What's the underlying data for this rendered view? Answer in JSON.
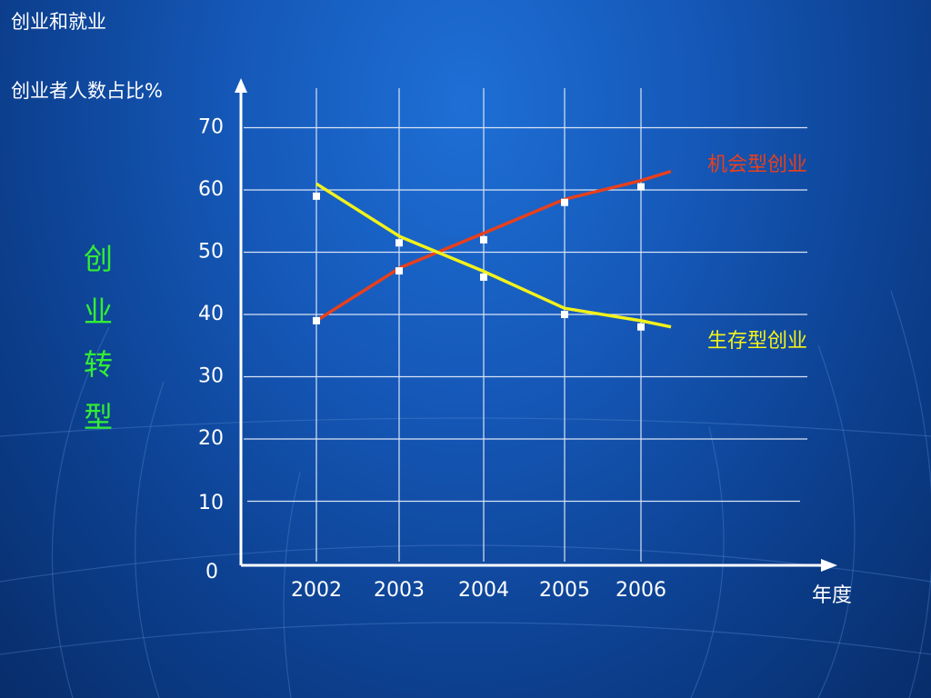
{
  "slide": {
    "title": "创业和就业",
    "side_title": "创业转型"
  },
  "colors": {
    "opportunity": "#e8401c",
    "survival": "#f2f21a",
    "axis": "#ffffff",
    "grid": "#d9e4f5",
    "side_title": "#33ee33"
  },
  "chart_data": {
    "type": "line",
    "ylabel": "创业者人数占比%",
    "xlabel": "年度",
    "categories": [
      "2002",
      "2003",
      "2004",
      "2005",
      "2006"
    ],
    "yticks": [
      "0",
      "10",
      "20",
      "30",
      "40",
      "50",
      "60",
      "70"
    ],
    "ylim": [
      0,
      70
    ],
    "grid": true,
    "series": [
      {
        "name": "机会型创业",
        "color_key": "opportunity",
        "line": [
          {
            "x": "2002",
            "y": 39
          },
          {
            "x": "2003",
            "y": 47.5
          },
          {
            "x": "2004",
            "y": 53
          },
          {
            "x": "2005",
            "y": 58.5
          },
          {
            "x": "2006",
            "y": 61.5
          },
          {
            "x": "2006+",
            "y": 63
          }
        ],
        "points": [
          39,
          47,
          52,
          58,
          60.5
        ]
      },
      {
        "name": "生存型创业",
        "color_key": "survival",
        "line": [
          {
            "x": "2002",
            "y": 61
          },
          {
            "x": "2003",
            "y": 52.5
          },
          {
            "x": "2004",
            "y": 47
          },
          {
            "x": "2005",
            "y": 41
          },
          {
            "x": "2006",
            "y": 39
          },
          {
            "x": "2006+",
            "y": 38
          }
        ],
        "points": [
          59,
          51.5,
          46,
          40,
          38
        ]
      }
    ]
  }
}
